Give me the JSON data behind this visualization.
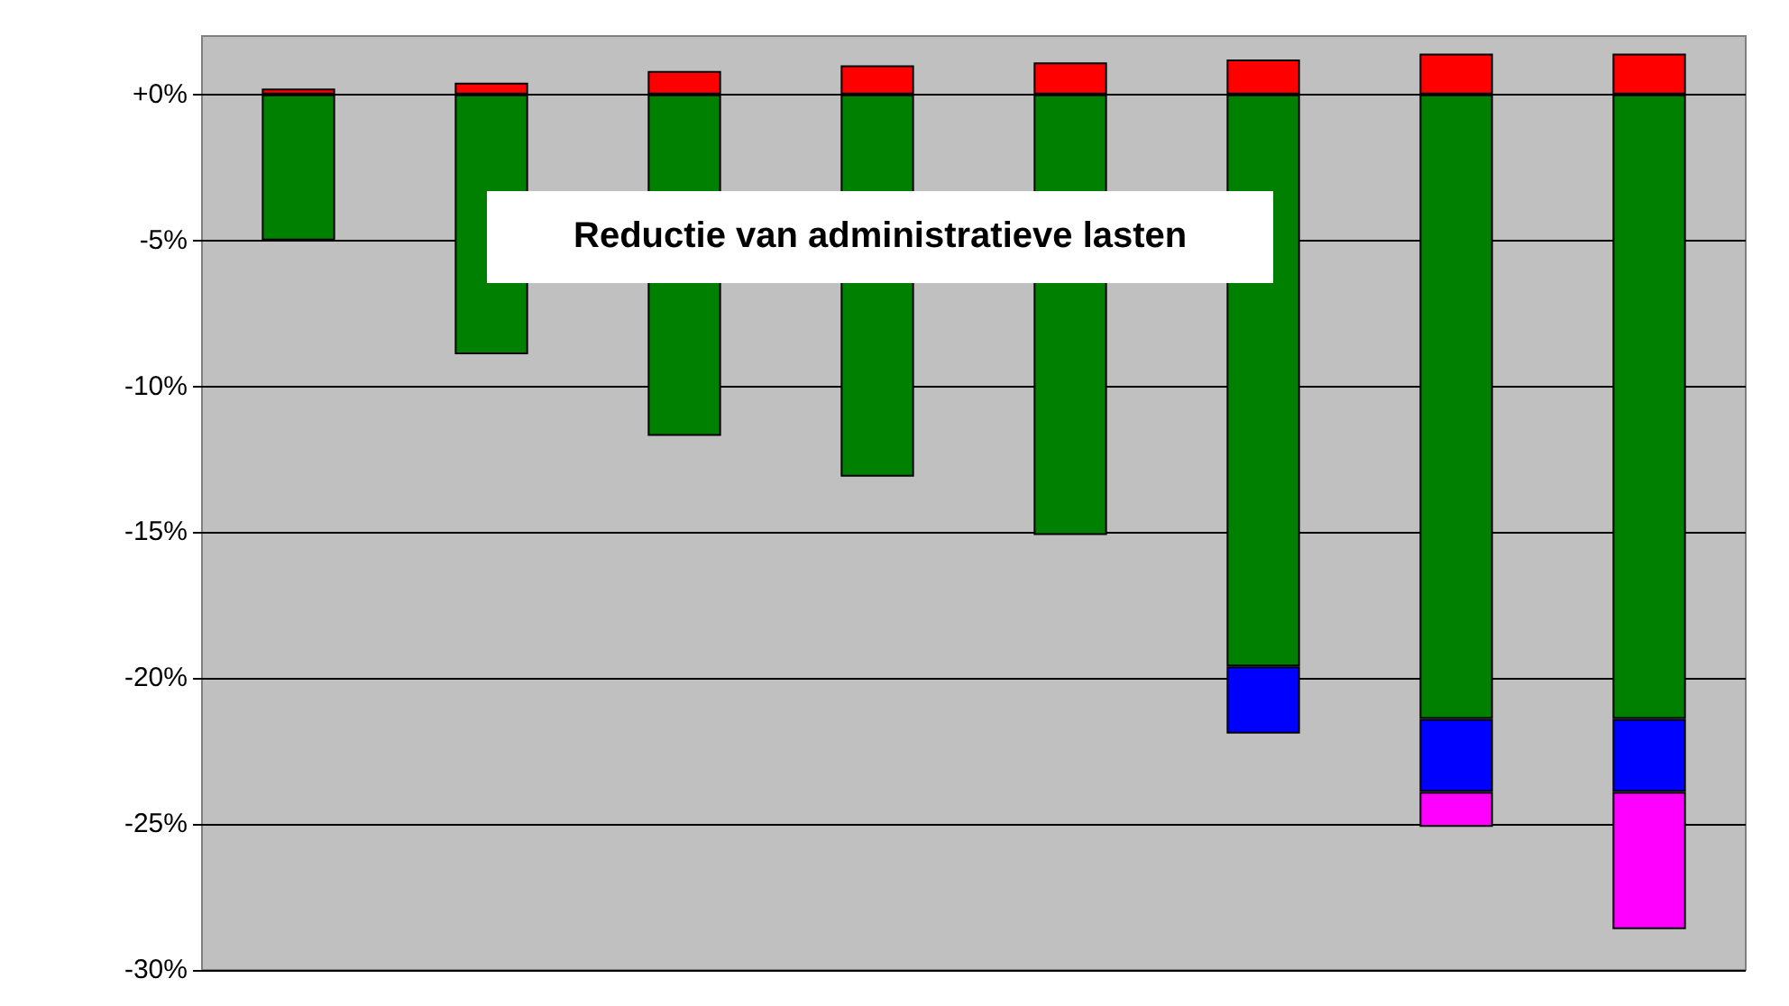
{
  "chart_data": {
    "type": "bar",
    "title": "Reductie van administratieve lasten",
    "categories": [
      null,
      null,
      null,
      null,
      null,
      null,
      null,
      null
    ],
    "stacked": true,
    "series": [
      {
        "color": "#ff0000",
        "values": [
          0.2,
          0.4,
          0.8,
          1.0,
          1.1,
          1.2,
          1.4,
          1.4
        ]
      },
      {
        "color": "#008000",
        "values": [
          -5.0,
          -8.9,
          -11.7,
          -13.1,
          -15.1,
          -19.6,
          -21.4,
          -21.4
        ]
      },
      {
        "color": "#0000ff",
        "values": [
          null,
          null,
          null,
          null,
          null,
          -2.3,
          -2.5,
          -2.5
        ]
      },
      {
        "color": "#ff00ff",
        "values": [
          null,
          null,
          null,
          null,
          null,
          null,
          -1.2,
          -4.7
        ]
      }
    ],
    "ylim": [
      -30,
      2
    ],
    "yticks": [
      {
        "value": 0,
        "label": "+0%"
      },
      {
        "value": -5,
        "label": "-5%"
      },
      {
        "value": -10,
        "label": "-10%"
      },
      {
        "value": -15,
        "label": "-15%"
      },
      {
        "value": -20,
        "label": "-20%"
      },
      {
        "value": -25,
        "label": "-25%"
      },
      {
        "value": -30,
        "label": "-30%"
      }
    ],
    "grid": "y",
    "tick_labels": "y"
  }
}
